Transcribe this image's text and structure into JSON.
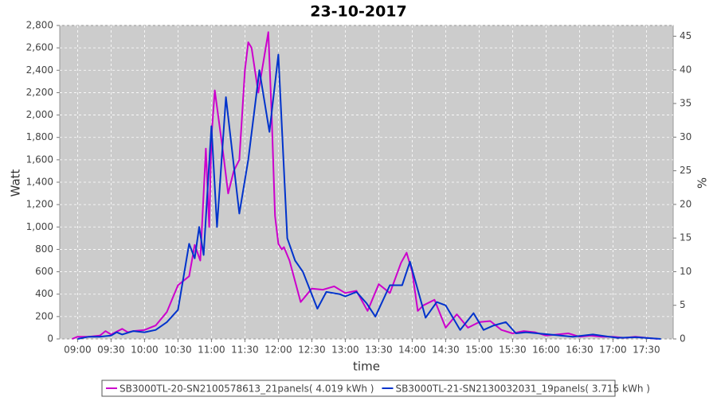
{
  "chart_data": {
    "type": "line",
    "title": "23-10-2017",
    "x_label": "time",
    "y_label": "Watt",
    "y2_label": "%",
    "xlim": [
      "08:44",
      "17:54"
    ],
    "xticks": [
      "09:00",
      "09:30",
      "10:00",
      "10:30",
      "11:00",
      "11:30",
      "12:00",
      "12:30",
      "13:00",
      "13:30",
      "14:00",
      "14:30",
      "15:00",
      "15:30",
      "16:00",
      "16:30",
      "17:00",
      "17:30"
    ],
    "ylim": [
      0,
      2800
    ],
    "yticks": [
      0,
      200,
      400,
      600,
      800,
      {
        "value": 1000,
        "label": "1,000"
      },
      {
        "value": 1200,
        "label": "1,200"
      },
      {
        "value": 1400,
        "label": "1,400"
      },
      {
        "value": 1600,
        "label": "1,600"
      },
      {
        "value": 1800,
        "label": "1,800"
      },
      {
        "value": 2000,
        "label": "2,000"
      },
      {
        "value": 2200,
        "label": "2,200"
      },
      {
        "value": 2400,
        "label": "2,400"
      },
      {
        "value": 2600,
        "label": "2,600"
      },
      {
        "value": 2800,
        "label": "2,800"
      }
    ],
    "y2lim": [
      0,
      46.6
    ],
    "y2ticks": [
      0,
      5,
      10,
      15,
      20,
      25,
      30,
      35,
      40,
      45
    ],
    "grid": true,
    "legend": "bottom",
    "series": [
      {
        "name": "SB3000TL-20-SN2100578613_21panels( 4.019 kWh )",
        "color": "#cc00cc",
        "x": [
          "08:55",
          "09:00",
          "09:10",
          "09:20",
          "09:25",
          "09:30",
          "09:40",
          "09:45",
          "09:50",
          "10:00",
          "10:10",
          "10:20",
          "10:30",
          "10:35",
          "10:40",
          "10:45",
          "10:50",
          "10:55",
          "10:58",
          "11:00",
          "11:03",
          "11:10",
          "11:15",
          "11:20",
          "11:25",
          "11:30",
          "11:33",
          "11:36",
          "11:42",
          "11:47",
          "11:51",
          "11:54",
          "11:57",
          "12:00",
          "12:03",
          "12:05",
          "12:10",
          "12:20",
          "12:30",
          "12:40",
          "12:50",
          "13:00",
          "13:10",
          "13:20",
          "13:30",
          "13:40",
          "13:50",
          "13:55",
          "14:00",
          "14:05",
          "14:10",
          "14:20",
          "14:30",
          "14:40",
          "14:50",
          "15:00",
          "15:10",
          "15:20",
          "15:30",
          "15:40",
          "15:50",
          "16:00",
          "16:10",
          "16:20",
          "16:30",
          "16:40",
          "16:50",
          "17:00",
          "17:10",
          "17:20",
          "17:30",
          "17:40"
        ],
        "values": [
          0,
          20,
          20,
          30,
          70,
          40,
          90,
          60,
          70,
          80,
          120,
          240,
          480,
          520,
          560,
          840,
          700,
          1700,
          1000,
          1800,
          2220,
          1700,
          1300,
          1500,
          1600,
          2400,
          2650,
          2600,
          2200,
          2500,
          2740,
          2000,
          1100,
          850,
          800,
          820,
          700,
          330,
          450,
          440,
          470,
          410,
          430,
          250,
          490,
          410,
          680,
          770,
          600,
          250,
          300,
          350,
          100,
          220,
          100,
          150,
          160,
          80,
          50,
          70,
          60,
          30,
          40,
          50,
          20,
          30,
          20,
          20,
          10,
          20,
          10,
          0
        ]
      },
      {
        "name": "SB3000TL-21-SN2130032031_19panels( 3.715 kWh )",
        "color": "#0033cc",
        "x": [
          "09:00",
          "09:10",
          "09:20",
          "09:30",
          "09:35",
          "09:40",
          "09:50",
          "10:00",
          "10:10",
          "10:20",
          "10:30",
          "10:40",
          "10:45",
          "10:49",
          "10:53",
          "11:00",
          "11:05",
          "11:13",
          "11:25",
          "11:33",
          "11:43",
          "11:52",
          "12:00",
          "12:08",
          "12:15",
          "12:22",
          "12:35",
          "12:43",
          "12:55",
          "13:00",
          "13:10",
          "13:19",
          "13:27",
          "13:40",
          "13:51",
          "13:58",
          "14:12",
          "14:22",
          "14:30",
          "14:43",
          "14:55",
          "15:04",
          "15:13",
          "15:24",
          "15:33",
          "15:42",
          "16:03",
          "16:24",
          "16:42",
          "17:04",
          "17:21",
          "17:43"
        ],
        "values": [
          0,
          20,
          20,
          30,
          60,
          40,
          70,
          60,
          80,
          150,
          260,
          850,
          720,
          1000,
          750,
          1900,
          1000,
          2160,
          1120,
          1600,
          2400,
          1850,
          2540,
          900,
          700,
          600,
          270,
          420,
          400,
          380,
          420,
          320,
          200,
          480,
          480,
          690,
          190,
          330,
          300,
          80,
          230,
          80,
          120,
          150,
          50,
          60,
          40,
          20,
          40,
          10,
          15,
          0
        ]
      }
    ]
  }
}
